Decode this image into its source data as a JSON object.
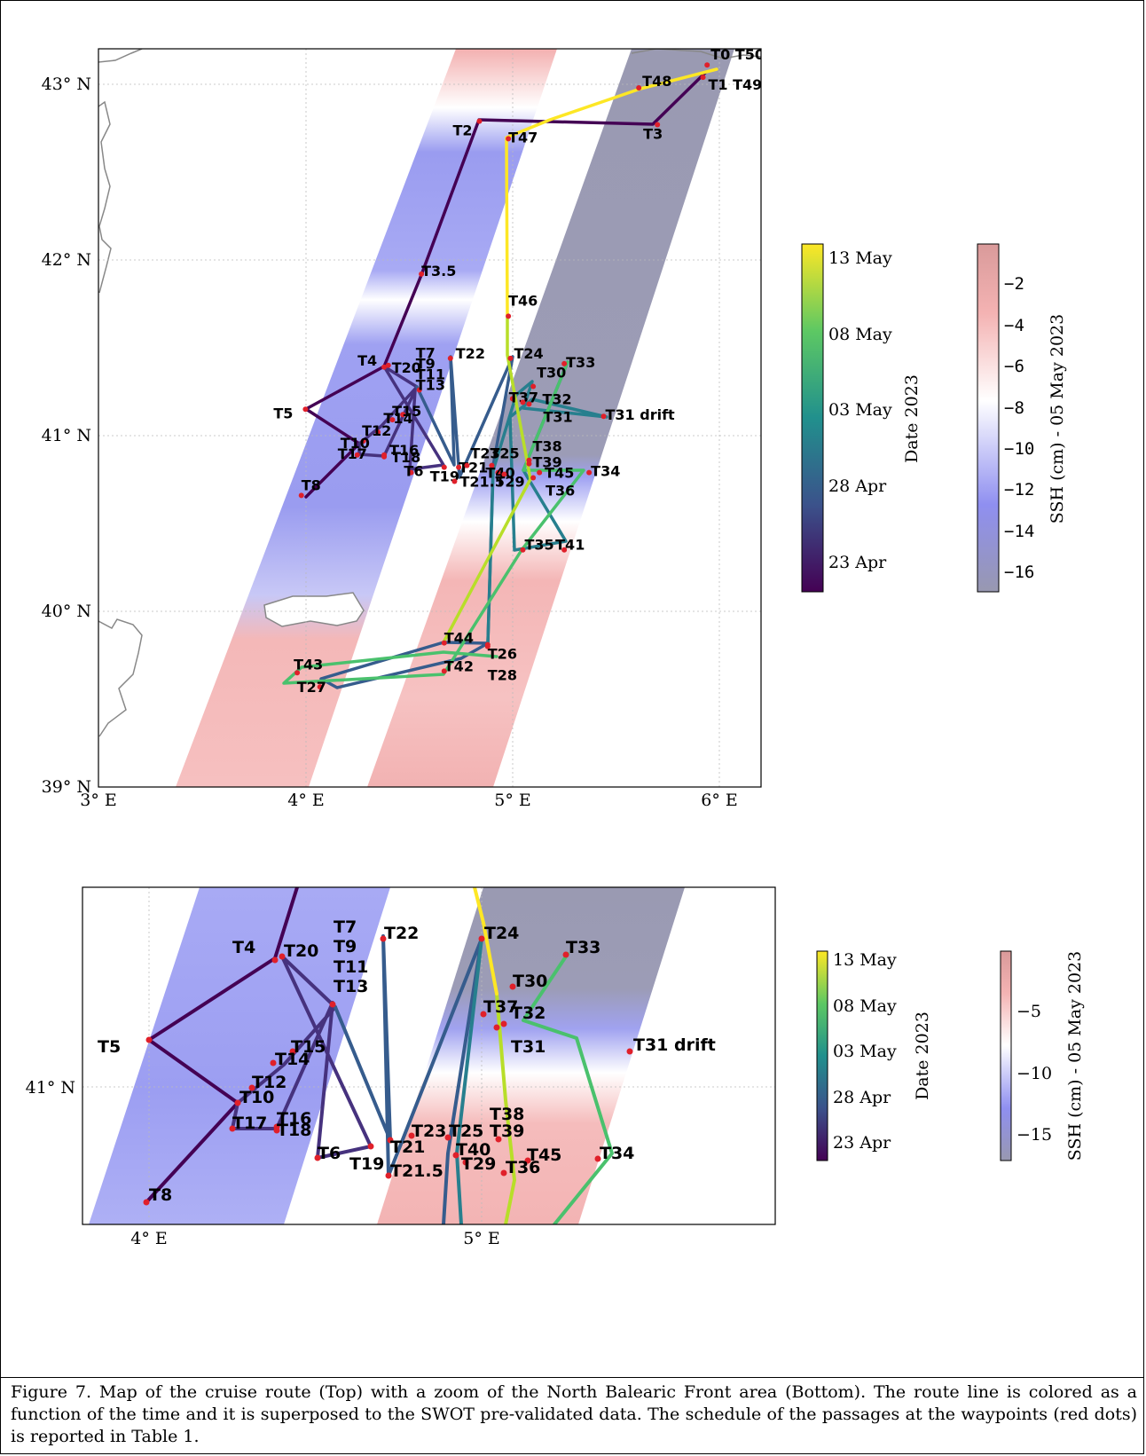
{
  "caption": "Figure 7. Map of the cruise route (Top) with a zoom of the North Balearic Front area (Bottom). The route line is colored as a function of the time and it is superposed to the SWOT pre-validated data. The schedule of the passages at the waypoints (red dots) is reported in Table 1.",
  "colors": {
    "waypoint": "#e0202a",
    "land_outline": "#888888",
    "ssh_low": "#9898b0",
    "ssh_mid": "#ffffff",
    "ssh_high": "#f0a0a0",
    "time_start": "#440154",
    "time_end": "#fde725"
  },
  "top_map": {
    "lon_ticks": [
      "3° E",
      "4° E",
      "5° E",
      "6° E"
    ],
    "lat_ticks": [
      "39° N",
      "40° N",
      "41° N",
      "42° N",
      "43° N"
    ],
    "waypoints": [
      {
        "label": "T0 T50",
        "lon": 5.94,
        "lat": 43.11
      },
      {
        "label": "T1 T49",
        "lon": 5.92,
        "lat": 43.04
      },
      {
        "label": "T48",
        "lon": 5.61,
        "lat": 42.98
      },
      {
        "label": "T2",
        "lon": 4.84,
        "lat": 42.79
      },
      {
        "label": "T3",
        "lon": 5.7,
        "lat": 42.77
      },
      {
        "label": "T47",
        "lon": 4.98,
        "lat": 42.69
      },
      {
        "label": "T3.5",
        "lon": 4.56,
        "lat": 41.92
      },
      {
        "label": "T46",
        "lon": 4.98,
        "lat": 41.68
      },
      {
        "label": "T4",
        "lon": 4.38,
        "lat": 41.39
      },
      {
        "label": "T20",
        "lon": 4.4,
        "lat": 41.4
      },
      {
        "label": "T7 T9 T11 T13",
        "lon": 4.55,
        "lat": 41.26
      },
      {
        "label": "T22",
        "lon": 4.7,
        "lat": 41.44
      },
      {
        "label": "T24",
        "lon": 4.99,
        "lat": 41.44
      },
      {
        "label": "T33",
        "lon": 5.25,
        "lat": 41.41
      },
      {
        "label": "T30",
        "lon": 5.1,
        "lat": 41.28
      },
      {
        "label": "T37",
        "lon": 5.0,
        "lat": 41.21
      },
      {
        "label": "T32",
        "lon": 5.05,
        "lat": 41.19
      },
      {
        "label": "T31",
        "lon": 5.08,
        "lat": 41.18
      },
      {
        "label": "T31 drift",
        "lon": 5.44,
        "lat": 41.11
      },
      {
        "label": "T5",
        "lon": 4.0,
        "lat": 41.15
      },
      {
        "label": "T15",
        "lon": 4.47,
        "lat": 41.12
      },
      {
        "label": "T14",
        "lon": 4.42,
        "lat": 41.09
      },
      {
        "label": "T12",
        "lon": 4.35,
        "lat": 41.02
      },
      {
        "label": "T10",
        "lon": 4.28,
        "lat": 40.97
      },
      {
        "label": "T17",
        "lon": 4.25,
        "lat": 40.89
      },
      {
        "label": "T16",
        "lon": 4.38,
        "lat": 40.89
      },
      {
        "label": "T18",
        "lon": 4.38,
        "lat": 40.88
      },
      {
        "label": "T6",
        "lon": 4.51,
        "lat": 40.79
      },
      {
        "label": "T19",
        "lon": 4.67,
        "lat": 40.82
      },
      {
        "label": "T21",
        "lon": 4.74,
        "lat": 40.82
      },
      {
        "label": "T21.5",
        "lon": 4.72,
        "lat": 40.74
      },
      {
        "label": "T23",
        "lon": 4.78,
        "lat": 40.83
      },
      {
        "label": "T25",
        "lon": 4.9,
        "lat": 40.83
      },
      {
        "label": "T38",
        "lon": 5.08,
        "lat": 40.86
      },
      {
        "label": "T39",
        "lon": 5.08,
        "lat": 40.84
      },
      {
        "label": "T40",
        "lon": 4.93,
        "lat": 40.79
      },
      {
        "label": "T29",
        "lon": 4.96,
        "lat": 40.78
      },
      {
        "label": "T45",
        "lon": 5.13,
        "lat": 40.79
      },
      {
        "label": "T36",
        "lon": 5.1,
        "lat": 40.76
      },
      {
        "label": "T34",
        "lon": 5.37,
        "lat": 40.79
      },
      {
        "label": "T8",
        "lon": 3.98,
        "lat": 40.66
      },
      {
        "label": "T35",
        "lon": 5.05,
        "lat": 40.35
      },
      {
        "label": "T41",
        "lon": 5.25,
        "lat": 40.35
      },
      {
        "label": "T44",
        "lon": 4.67,
        "lat": 39.82
      },
      {
        "label": "T26",
        "lon": 4.88,
        "lat": 39.81
      },
      {
        "label": "T28",
        "lon": 4.88,
        "lat": 39.8
      },
      {
        "label": "T42",
        "lon": 4.67,
        "lat": 39.66
      },
      {
        "label": "T43",
        "lon": 3.96,
        "lat": 39.65
      },
      {
        "label": "T27",
        "lon": 4.07,
        "lat": 39.57
      }
    ]
  },
  "time_colorbar": {
    "label": "Date 2023",
    "ticks": [
      "13 May",
      "08 May",
      "03 May",
      "28 Apr",
      "23 Apr"
    ]
  },
  "ssh_colorbar_top": {
    "label": "SSH (cm) - 05 May 2023",
    "ticks": [
      "−2",
      "−4",
      "−6",
      "−8",
      "−10",
      "−12",
      "−14",
      "−16"
    ]
  },
  "bottom_map": {
    "lon_ticks": [
      "4° E",
      "5° E"
    ],
    "lat_ticks": [
      "41° N"
    ],
    "waypoints": [
      {
        "label": "T4"
      },
      {
        "label": "T20"
      },
      {
        "label": "T7"
      },
      {
        "label": "T9"
      },
      {
        "label": "T11"
      },
      {
        "label": "T13"
      },
      {
        "label": "T22"
      },
      {
        "label": "T24"
      },
      {
        "label": "T33"
      },
      {
        "label": "T30"
      },
      {
        "label": "T37"
      },
      {
        "label": "T32"
      },
      {
        "label": "T31"
      },
      {
        "label": "T31 drift"
      },
      {
        "label": "T5"
      },
      {
        "label": "T15"
      },
      {
        "label": "T14"
      },
      {
        "label": "T12"
      },
      {
        "label": "T10"
      },
      {
        "label": "T17"
      },
      {
        "label": "T16"
      },
      {
        "label": "T18"
      },
      {
        "label": "T6"
      },
      {
        "label": "T19"
      },
      {
        "label": "T21"
      },
      {
        "label": "T21.5"
      },
      {
        "label": "T23"
      },
      {
        "label": "T25"
      },
      {
        "label": "T38"
      },
      {
        "label": "T39"
      },
      {
        "label": "T40"
      },
      {
        "label": "T29"
      },
      {
        "label": "T45"
      },
      {
        "label": "T36"
      },
      {
        "label": "T34"
      },
      {
        "label": "T8"
      }
    ]
  },
  "ssh_colorbar_bottom": {
    "label": "SSH (cm) - 05 May 2023",
    "ticks": [
      "−5",
      "−10",
      "−15"
    ]
  }
}
